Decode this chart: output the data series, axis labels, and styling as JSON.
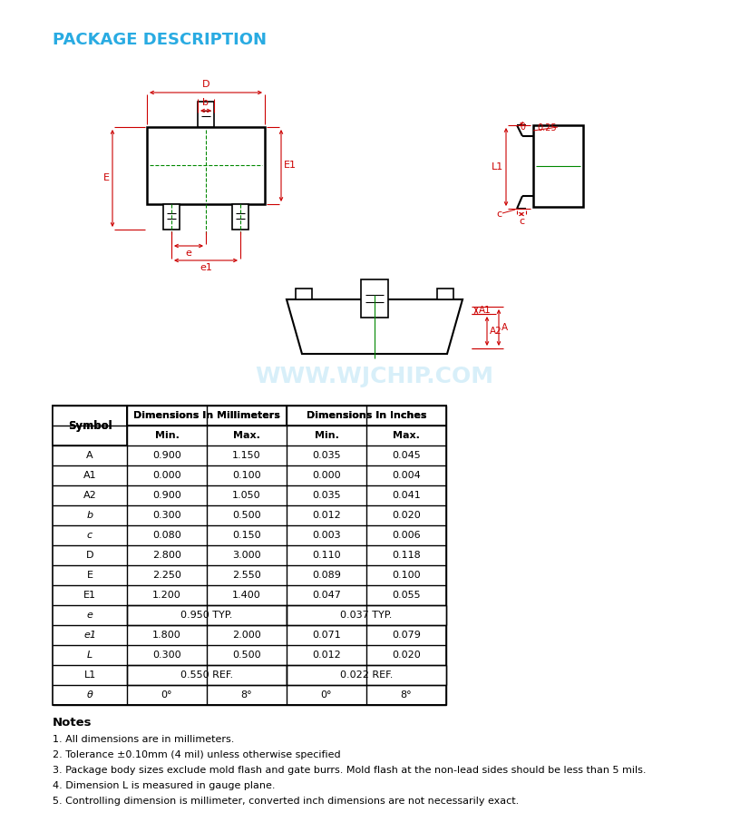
{
  "title": "PACKAGE DESCRIPTION",
  "title_color": "#29ABE2",
  "table_data": [
    [
      "A",
      "0.900",
      "1.150",
      "0.035",
      "0.045"
    ],
    [
      "A1",
      "0.000",
      "0.100",
      "0.000",
      "0.004"
    ],
    [
      "A2",
      "0.900",
      "1.050",
      "0.035",
      "0.041"
    ],
    [
      "b",
      "0.300",
      "0.500",
      "0.012",
      "0.020"
    ],
    [
      "c",
      "0.080",
      "0.150",
      "0.003",
      "0.006"
    ],
    [
      "D",
      "2.800",
      "3.000",
      "0.110",
      "0.118"
    ],
    [
      "E",
      "2.250",
      "2.550",
      "0.089",
      "0.100"
    ],
    [
      "E1",
      "1.200",
      "1.400",
      "0.047",
      "0.055"
    ],
    [
      "e",
      "0.950 TYP.",
      "",
      "0.037 TYP.",
      ""
    ],
    [
      "e1",
      "1.800",
      "2.000",
      "0.071",
      "0.079"
    ],
    [
      "L",
      "0.300",
      "0.500",
      "0.012",
      "0.020"
    ],
    [
      "L1",
      "0.550 REF.",
      "",
      "0.022 REF.",
      ""
    ],
    [
      "θ",
      "0°",
      "8°",
      "0°",
      "8°"
    ]
  ],
  "notes": [
    "Notes",
    "1. All dimensions are in millimeters.",
    "2. Tolerance ±0.10mm (4 mil) unless otherwise specified",
    "3. Package body sizes exclude mold flash and gate burrs. Mold flash at the non-lead sides should be less than 5 mils.",
    "4. Dimension L is measured in gauge plane.",
    "5. Controlling dimension is millimeter, converted inch dimensions are not necessarily exact."
  ],
  "dim_color": "#CC0000",
  "watermark_color": "#29ABE2"
}
